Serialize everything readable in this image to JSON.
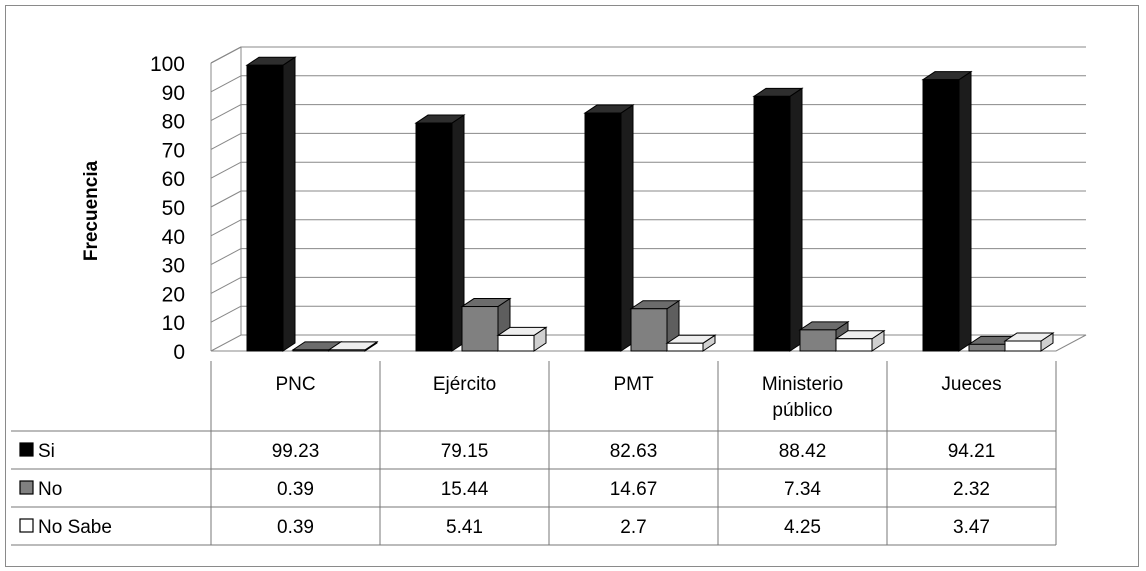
{
  "chart_data": {
    "type": "bar",
    "style": "3d-clustered-with-data-table",
    "ylabel": "Frecuencia",
    "xlabel": "",
    "ylim": [
      0,
      100
    ],
    "yticks": [
      "0",
      "10",
      "20",
      "30",
      "40",
      "50",
      "60",
      "70",
      "80",
      "90",
      "100"
    ],
    "categories": [
      [
        "PNC"
      ],
      [
        "Ejército"
      ],
      [
        "PMT"
      ],
      [
        "Ministerio",
        "público"
      ],
      [
        "Jueces"
      ]
    ],
    "series": [
      {
        "name": "Si",
        "color": "#000000",
        "values": [
          99.23,
          79.15,
          82.63,
          88.42,
          94.21
        ]
      },
      {
        "name": "No",
        "color": "#808080",
        "values": [
          0.39,
          15.44,
          14.67,
          7.34,
          2.32
        ]
      },
      {
        "name": "No Sabe",
        "color": "#ffffff",
        "values": [
          0.39,
          5.41,
          2.7,
          4.25,
          3.47
        ]
      }
    ],
    "gridlines": true,
    "legend": "in-data-table"
  }
}
